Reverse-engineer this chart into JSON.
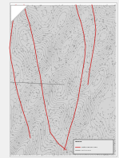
{
  "bg_color": "#f0f0f0",
  "page_color": "#ffffff",
  "map_bg_light": "#d8d8d8",
  "map_bg_dark": "#b0b0b0",
  "contour_color": "#888888",
  "red_line_color": "#cc2222",
  "dark_line_color": "#555555",
  "legend_box_color": "#e0e0e0",
  "title": "Soil moisture levels across different areas",
  "fold_size": 0.16
}
